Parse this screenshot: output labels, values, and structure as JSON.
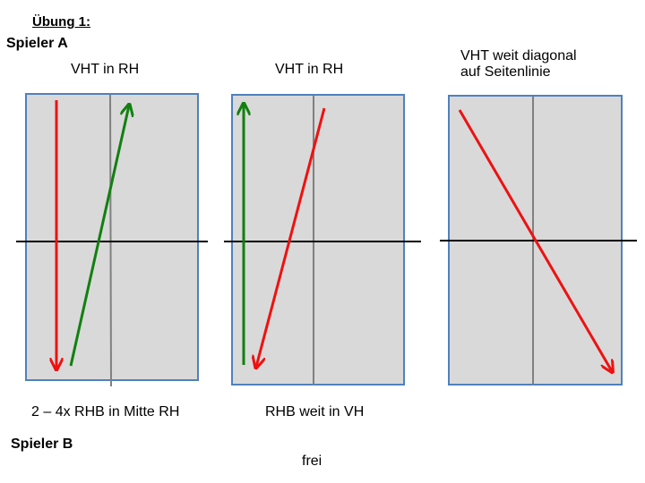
{
  "title": "Übung 1:",
  "player_a": "Spieler A",
  "player_b": "Spieler B",
  "courts": [
    {
      "top_label": "VHT in RH",
      "bottom_label": "2 – 4x RHB in Mitte RH",
      "arrows": [
        {
          "name": "red-arrow",
          "color": "#ee1111",
          "direction": "down"
        },
        {
          "name": "green-arrow",
          "color": "#11800f",
          "direction": "up-diagonal"
        }
      ]
    },
    {
      "top_label": "VHT in RH",
      "bottom_label": "RHB weit in VH",
      "arrows": [
        {
          "name": "green-arrow",
          "color": "#11800f",
          "direction": "up"
        },
        {
          "name": "red-arrow",
          "color": "#ee1111",
          "direction": "down-diagonal"
        }
      ]
    },
    {
      "top_label_lines": [
        "VHT weit diagonal",
        "auf Seitenlinie"
      ],
      "arrows": [
        {
          "name": "red-arrow",
          "color": "#ee1111",
          "direction": "down-diagonal"
        }
      ]
    }
  ],
  "free_label": "frei",
  "colors": {
    "court_fill": "#d9d9d9",
    "court_border": "#4f81bd",
    "center_line": "#808080",
    "net_line": "#000000",
    "red": "#ee1111",
    "green": "#11800f"
  }
}
